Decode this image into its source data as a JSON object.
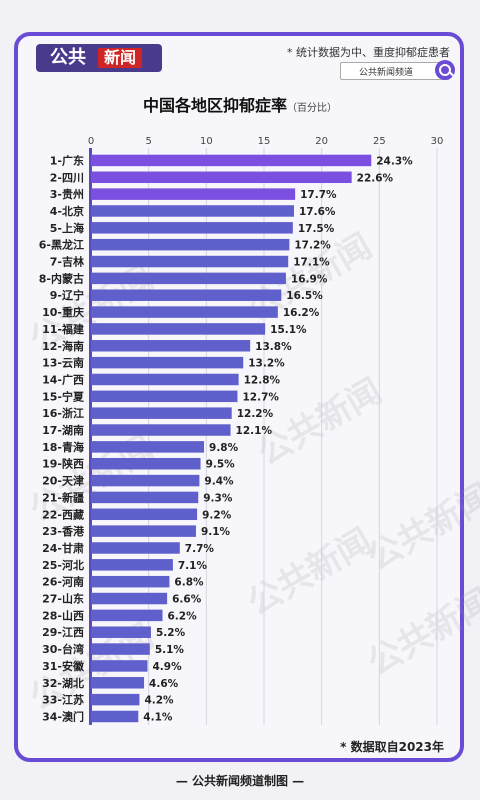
{
  "header": {
    "logo_left": "公共",
    "logo_right": "新闻",
    "note": "* 统计数据为中、重度抑郁症患者",
    "search_text": "公共新闻频道"
  },
  "title": {
    "main": "中国各地区抑郁症率",
    "sub": "（百分比）"
  },
  "footnote": "* 数据取自2023年",
  "bottom": "— 公共新闻频道制图 —",
  "watermark": "公共新闻",
  "colors": {
    "bar_top3": "#7b4fe0",
    "bar": "#6060cc",
    "frame": "#6a4bd6"
  },
  "chart_data": {
    "type": "bar",
    "orientation": "horizontal",
    "title": "中国各地区抑郁症率",
    "subtitle": "（百分比）",
    "xlim": [
      0,
      30
    ],
    "xticks": [
      0,
      5,
      10,
      15,
      20,
      25,
      30
    ],
    "grid": true,
    "categories": [
      "1-广东",
      "2-四川",
      "3-贵州",
      "4-北京",
      "5-上海",
      "6-黑龙江",
      "7-吉林",
      "8-内蒙古",
      "9-辽宁",
      "10-重庆",
      "11-福建",
      "12-海南",
      "13-云南",
      "14-广西",
      "15-宁夏",
      "16-浙江",
      "17-湖南",
      "18-青海",
      "19-陕西",
      "20-天津",
      "21-新疆",
      "22-西藏",
      "23-香港",
      "24-甘肃",
      "25-河北",
      "26-河南",
      "27-山东",
      "28-山西",
      "29-江西",
      "30-台湾",
      "31-安徽",
      "32-湖北",
      "33-江苏",
      "34-澳门"
    ],
    "values": [
      24.3,
      22.6,
      17.7,
      17.6,
      17.5,
      17.2,
      17.1,
      16.9,
      16.5,
      16.2,
      15.1,
      13.8,
      13.2,
      12.8,
      12.7,
      12.2,
      12.1,
      9.8,
      9.5,
      9.4,
      9.3,
      9.2,
      9.1,
      7.7,
      7.1,
      6.8,
      6.6,
      6.2,
      5.2,
      5.1,
      4.9,
      4.6,
      4.2,
      4.1
    ],
    "labels": [
      "24.3%",
      "22.6%",
      "17.7%",
      "17.6%",
      "17.5%",
      "17.2%",
      "17.1%",
      "16.9%",
      "16.5%",
      "16.2%",
      "15.1%",
      "13.8%",
      "13.2%",
      "12.8%",
      "12.7%",
      "12.2%",
      "12.1%",
      "9.8%",
      "9.5%",
      "9.4%",
      "9.3%",
      "9.2%",
      "9.1%",
      "7.7%",
      "7.1%",
      "6.8%",
      "6.6%",
      "6.2%",
      "5.2%",
      "5.1%",
      "4.9%",
      "4.6%",
      "4.2%",
      "4.1%"
    ]
  }
}
